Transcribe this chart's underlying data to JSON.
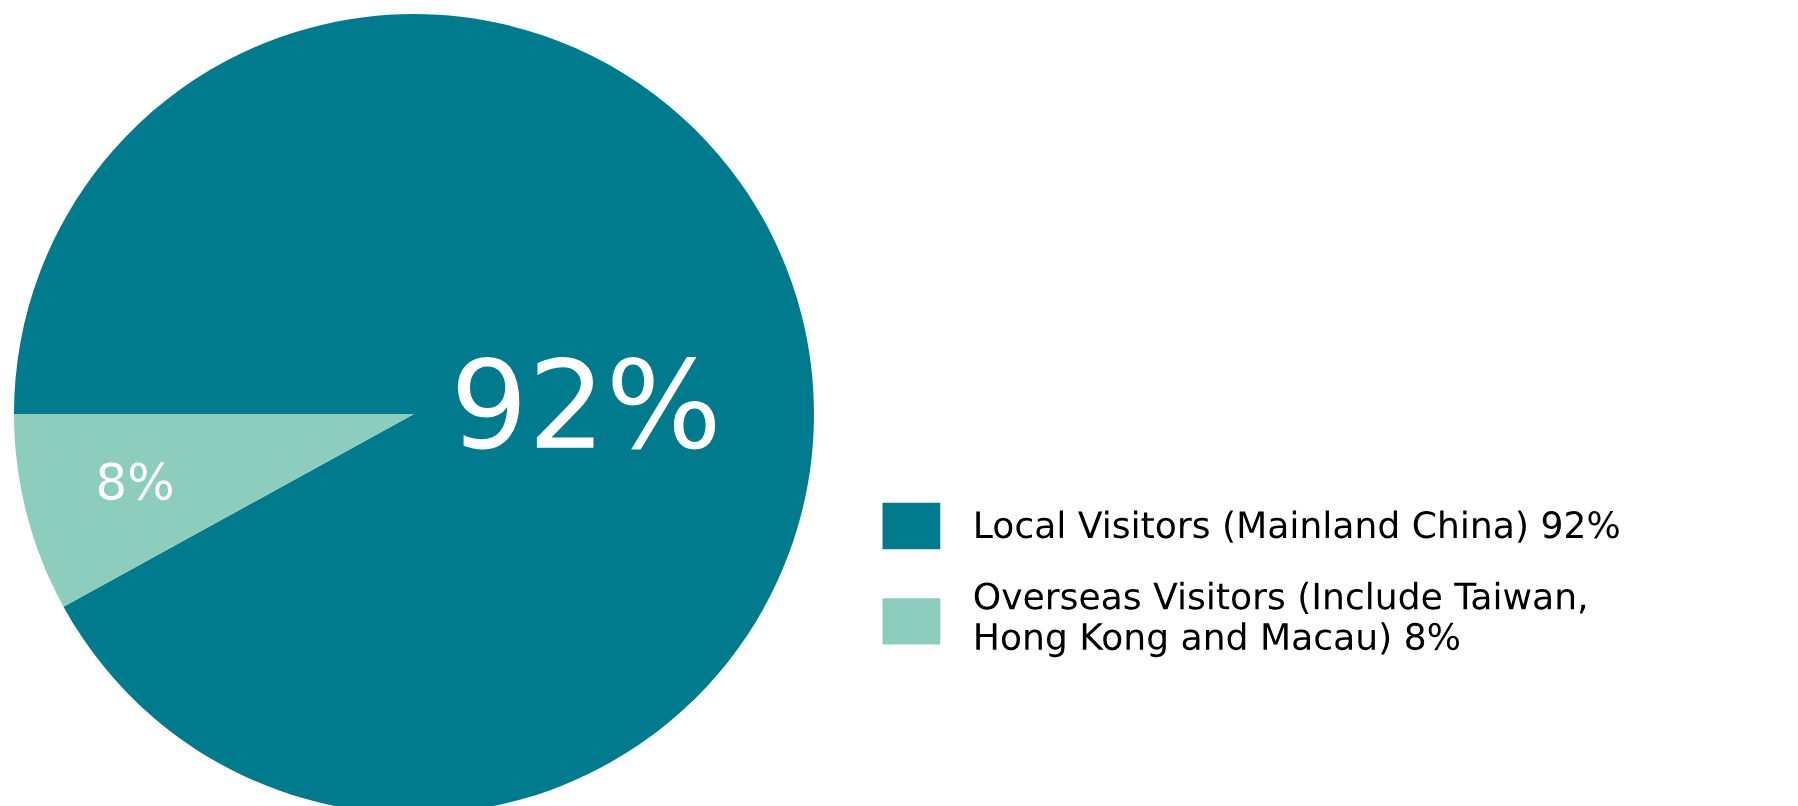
{
  "chart_data": {
    "type": "pie",
    "categories": [
      "Local Visitors (Mainland China)",
      "Overseas Visitors (Include Taiwan,\nHong Kong and Macau)"
    ],
    "values": [
      92,
      8
    ],
    "colors": [
      "#007b8d",
      "#8dcdbd"
    ],
    "value_labels": [
      "92%",
      "8%"
    ],
    "legend": "right"
  }
}
